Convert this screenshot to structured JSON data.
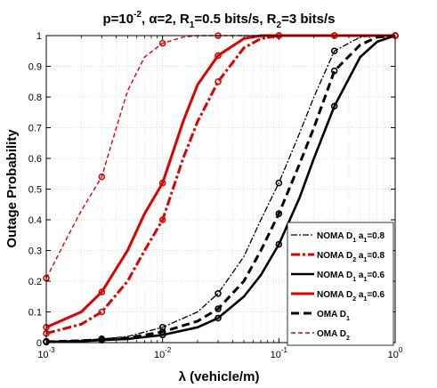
{
  "chart_data": {
    "type": "line",
    "title": "p=10-2,  α=2, R1=0.5 bits/s, R2=3 bits/s",
    "title_parts": {
      "p_prefix": "p=10",
      "p_exp": "-2",
      "mid": ",  α=2, R",
      "r1_sub": "1",
      "r1_text": "=0.5 bits/s, R",
      "r2_sub": "2",
      "r2_text": "=3 bits/s"
    },
    "xlabel": "λ (vehicle/m)",
    "ylabel": "Outage Probability",
    "xscale": "log",
    "xlim": [
      0.001,
      1
    ],
    "ylim": [
      0,
      1
    ],
    "grid": true,
    "legend_position": "bottom-right",
    "x_ticks": [
      0.001,
      0.01,
      0.1,
      1
    ],
    "x_tick_labels": [
      {
        "base": "10",
        "exp": "-3"
      },
      {
        "base": "10",
        "exp": "-2"
      },
      {
        "base": "10",
        "exp": "-1"
      },
      {
        "base": "10",
        "exp": "0"
      }
    ],
    "y_ticks": [
      0,
      0.1,
      0.2,
      0.3,
      0.4,
      0.5,
      0.6,
      0.7,
      0.8,
      0.9,
      1
    ],
    "y_tick_labels": [
      "0",
      "0.1",
      "0.2",
      "0.3",
      "0.4",
      "0.5",
      "0.6",
      "0.7",
      "0.8",
      "0.9",
      "1"
    ],
    "series": [
      {
        "name": "NOMA D1 a1=0.8",
        "legend": {
          "pre": "NOMA D",
          "sub1": "1",
          "mid": " a",
          "sub2": "1",
          "post": "=0.8"
        },
        "color": "#000000",
        "style": "dashdot-thin",
        "marker": "circle",
        "x": [
          0.001,
          0.002,
          0.003,
          0.005,
          0.01,
          0.02,
          0.03,
          0.05,
          0.07,
          0.1,
          0.15,
          0.2,
          0.3,
          0.5,
          0.7,
          1
        ],
        "y": [
          0.004,
          0.008,
          0.012,
          0.02,
          0.05,
          0.1,
          0.16,
          0.28,
          0.4,
          0.52,
          0.68,
          0.8,
          0.95,
          0.995,
          1,
          1
        ],
        "markers_x": [
          0.001,
          0.003,
          0.01,
          0.03,
          0.1,
          0.3,
          1
        ],
        "markers_y": [
          0.004,
          0.012,
          0.05,
          0.16,
          0.52,
          0.95,
          1
        ]
      },
      {
        "name": "NOMA D2 a1=0.8",
        "legend": {
          "pre": "NOMA D",
          "sub1": "2",
          "mid": " a",
          "sub2": "1",
          "post": "=0.8"
        },
        "color": "#e00000",
        "style": "dashdot-thick",
        "marker": "circle",
        "x": [
          0.001,
          0.002,
          0.003,
          0.005,
          0.007,
          0.01,
          0.015,
          0.02,
          0.03,
          0.05,
          0.07,
          0.1,
          0.2,
          0.3,
          1
        ],
        "y": [
          0.03,
          0.06,
          0.1,
          0.2,
          0.3,
          0.4,
          0.6,
          0.72,
          0.85,
          0.96,
          0.99,
          1,
          1,
          1,
          1
        ],
        "markers_x": [
          0.001,
          0.003,
          0.01,
          0.03,
          0.1,
          0.3,
          1
        ],
        "markers_y": [
          0.03,
          0.1,
          0.4,
          0.85,
          1,
          1,
          1
        ]
      },
      {
        "name": "NOMA D1 a1=0.6",
        "legend": {
          "pre": "NOMA D",
          "sub1": "1",
          "mid": " a",
          "sub2": "1",
          "post": "=0.6"
        },
        "color": "#000000",
        "style": "solid",
        "marker": "circle",
        "x": [
          0.001,
          0.002,
          0.003,
          0.005,
          0.01,
          0.02,
          0.03,
          0.05,
          0.07,
          0.1,
          0.15,
          0.2,
          0.3,
          0.5,
          0.7,
          1
        ],
        "y": [
          0.002,
          0.005,
          0.008,
          0.012,
          0.025,
          0.05,
          0.08,
          0.15,
          0.22,
          0.32,
          0.47,
          0.6,
          0.77,
          0.93,
          0.98,
          1
        ],
        "markers_x": [
          0.001,
          0.003,
          0.01,
          0.03,
          0.1,
          0.3,
          1
        ],
        "markers_y": [
          0.002,
          0.008,
          0.025,
          0.08,
          0.32,
          0.77,
          1
        ]
      },
      {
        "name": "NOMA D2 a1=0.6",
        "legend": {
          "pre": "NOMA D",
          "sub1": "2",
          "mid": " a",
          "sub2": "1",
          "post": "=0.6"
        },
        "color": "#e00000",
        "style": "solid-thick",
        "marker": "circle",
        "x": [
          0.001,
          0.002,
          0.003,
          0.005,
          0.007,
          0.01,
          0.015,
          0.02,
          0.03,
          0.05,
          0.07,
          0.1,
          0.2,
          0.3,
          1
        ],
        "y": [
          0.05,
          0.1,
          0.165,
          0.3,
          0.42,
          0.52,
          0.72,
          0.84,
          0.935,
          0.99,
          1,
          1,
          1,
          1,
          1
        ],
        "markers_x": [
          0.001,
          0.003,
          0.01,
          0.03,
          0.1,
          0.3,
          1
        ],
        "markers_y": [
          0.05,
          0.165,
          0.52,
          0.935,
          1,
          1,
          1
        ]
      },
      {
        "name": "OMA D1",
        "legend": {
          "pre": "OMA D",
          "sub1": "1",
          "mid": "",
          "sub2": "",
          "post": ""
        },
        "color": "#000000",
        "style": "dashed-thick",
        "marker": "circle",
        "x": [
          0.001,
          0.002,
          0.003,
          0.005,
          0.01,
          0.02,
          0.03,
          0.05,
          0.07,
          0.1,
          0.15,
          0.2,
          0.3,
          0.5,
          0.7,
          1
        ],
        "y": [
          0.003,
          0.006,
          0.01,
          0.015,
          0.035,
          0.07,
          0.11,
          0.2,
          0.3,
          0.42,
          0.58,
          0.7,
          0.885,
          0.97,
          0.995,
          1
        ],
        "markers_x": [
          0.001,
          0.003,
          0.01,
          0.03,
          0.1,
          0.3,
          1
        ],
        "markers_y": [
          0.003,
          0.01,
          0.035,
          0.11,
          0.42,
          0.885,
          1
        ]
      },
      {
        "name": "OMA D2",
        "legend": {
          "pre": "OMA D",
          "sub1": "2",
          "mid": "",
          "sub2": "",
          "post": ""
        },
        "color": "#e00000",
        "style": "dashed-thin",
        "marker": "circle",
        "x": [
          0.001,
          0.0015,
          0.002,
          0.003,
          0.004,
          0.005,
          0.007,
          0.01,
          0.015,
          0.02,
          0.03,
          0.1,
          0.3,
          1
        ],
        "y": [
          0.21,
          0.34,
          0.43,
          0.54,
          0.7,
          0.82,
          0.93,
          0.975,
          0.995,
          1,
          1,
          1,
          1,
          1
        ],
        "markers_x": [
          0.001,
          0.003,
          0.01,
          0.03,
          0.1,
          0.3,
          1
        ],
        "markers_y": [
          0.21,
          0.54,
          0.975,
          1,
          1,
          1,
          1
        ]
      }
    ]
  }
}
